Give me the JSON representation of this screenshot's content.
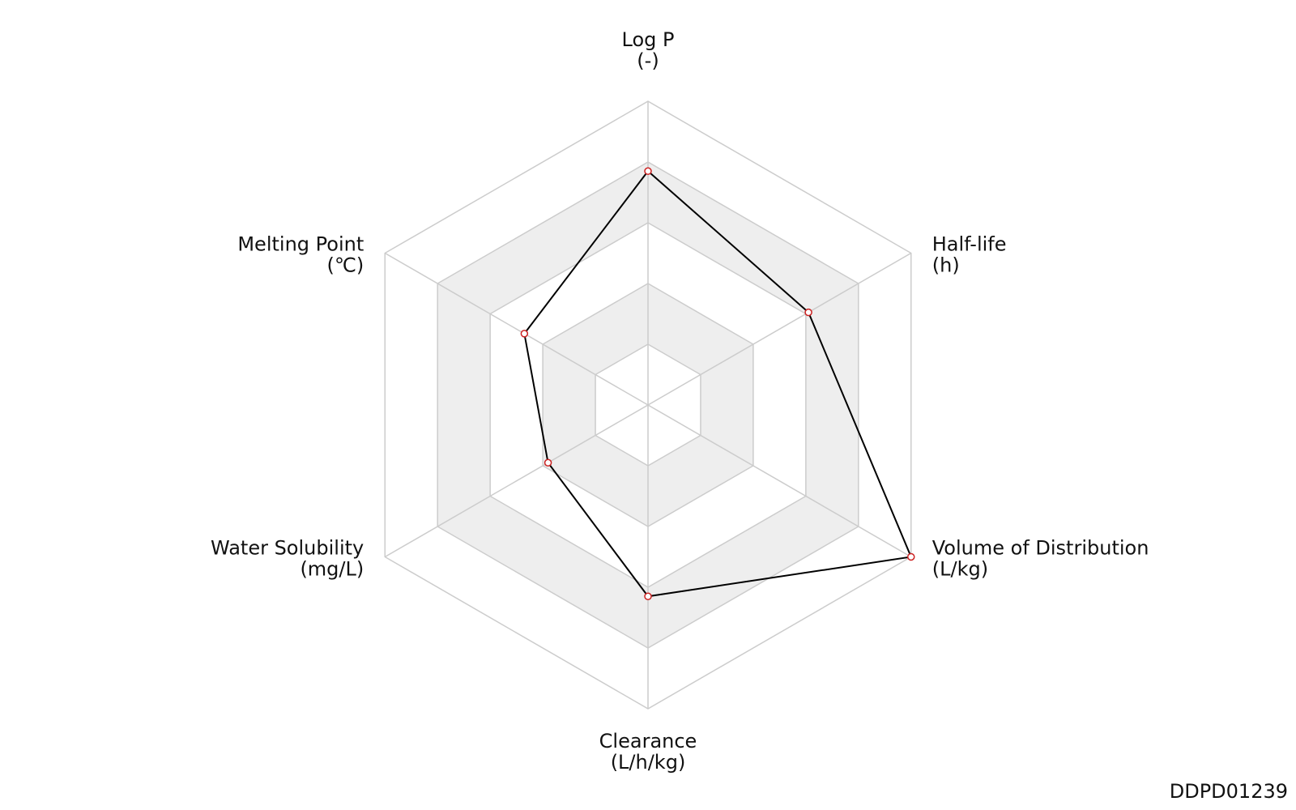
{
  "chart_data": {
    "type": "radar",
    "categories": [
      "Log P",
      "Half-life",
      "Volume of Distribution",
      "Clearance",
      "Water Solubility",
      "Melting Point"
    ],
    "units": [
      "(-)",
      "(h)",
      "(L/kg)",
      "(L/h/kg)",
      "(mg/L)",
      "(℃)"
    ],
    "values": [
      0.77,
      0.61,
      1.0,
      0.63,
      0.38,
      0.47
    ],
    "color": "#000000",
    "marker_color": "#cc2222",
    "rlim": [
      0,
      1
    ],
    "rticks": [
      0.2,
      0.4,
      0.6,
      0.8,
      1.0
    ],
    "band_colors": [
      "#ffffff",
      "#eeeeee"
    ],
    "id_label": "DDPD01239"
  }
}
